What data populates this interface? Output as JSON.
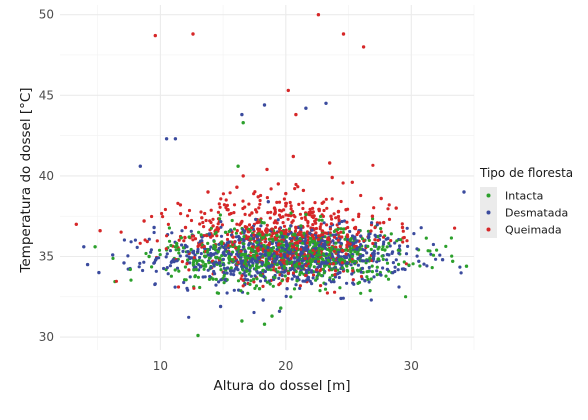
{
  "chart_data": {
    "type": "scatter",
    "xlabel": "Altura do dossel [m]",
    "ylabel": "Temperatura do dossel [°C]",
    "xlim": [
      2,
      35
    ],
    "ylim": [
      29.2,
      50.6
    ],
    "x_ticks": [
      10,
      20,
      30
    ],
    "y_ticks": [
      30,
      35,
      40,
      45,
      50
    ],
    "grid": true,
    "legend": {
      "title": "Tipo de floresta",
      "placement": "right",
      "entries": [
        "Intacta",
        "Desmatada",
        "Queimada"
      ]
    },
    "series": [
      {
        "name": "Intacta",
        "color": "#2ca02c",
        "x": [
          13.0,
          16.6,
          16.2,
          16.5,
          18.3,
          19.6,
          18.9,
          15.8,
          14.6,
          12.3,
          21.6,
          22.3,
          14.2,
          23.1,
          17.2,
          18.6,
          9.1,
          4.8,
          33.3,
          34.4,
          27.9,
          7.6,
          11.3,
          25.2,
          26.7,
          15.2,
          20.4,
          19.8,
          17.9,
          21.2,
          22.7,
          16.9,
          18.1,
          20.9,
          19.3,
          23.8,
          14.9,
          24.6,
          13.6,
          21.9
        ],
        "y": [
          30.1,
          43.3,
          40.6,
          31.0,
          30.8,
          31.8,
          31.3,
          34.8,
          35.3,
          36.2,
          37.6,
          35.9,
          33.6,
          34.4,
          36.1,
          35.2,
          35.0,
          35.6,
          34.7,
          34.4,
          35.4,
          34.2,
          35.8,
          36.1,
          34.9,
          36.5,
          34.6,
          35.7,
          33.0,
          36.9,
          35.1,
          34.1,
          37.1,
          33.5,
          36.3,
          34.8,
          35.9,
          36.7,
          34.5,
          35.3
        ]
      },
      {
        "name": "Desmatada",
        "color": "#3b4b9e",
        "x": [
          10.5,
          11.2,
          16.5,
          18.3,
          21.6,
          23.2,
          8.4,
          34.2,
          4.2,
          5.1,
          3.9,
          6.2,
          7.1,
          14.8,
          18.2,
          19.5,
          20.1,
          21.8,
          24.4,
          26.3,
          28.1,
          30.6,
          32.5,
          12.2,
          13.9,
          15.6,
          17.1,
          18.8,
          20.7,
          22.4,
          25.5,
          27.0,
          9.5,
          19.9,
          21.3,
          17.6,
          16.8,
          22.9,
          15.2,
          20.4,
          24.9,
          18.6
        ],
        "y": [
          42.3,
          42.3,
          43.8,
          44.4,
          44.2,
          44.5,
          40.6,
          39.0,
          34.5,
          34.0,
          35.6,
          35.1,
          34.6,
          31.9,
          32.3,
          31.6,
          33.0,
          33.7,
          32.4,
          33.5,
          34.2,
          34.7,
          34.8,
          35.3,
          36.4,
          34.1,
          35.8,
          36.6,
          34.9,
          35.5,
          36.2,
          35.0,
          36.8,
          35.1,
          34.4,
          37.3,
          33.8,
          36.0,
          35.7,
          36.9,
          34.6,
          38.4
        ]
      },
      {
        "name": "Queimada",
        "color": "#d62728",
        "x": [
          22.6,
          24.6,
          26.2,
          12.6,
          9.6,
          20.2,
          20.8,
          23.5,
          25.3,
          27.6,
          28.8,
          19.4,
          17.8,
          15.4,
          13.3,
          11.6,
          8.7,
          5.2,
          3.3,
          21.4,
          22.9,
          24.2,
          18.5,
          16.1,
          14.2,
          26.9,
          29.3,
          20.6,
          19.1,
          17.3,
          23.7,
          25.8,
          27.8,
          22.1,
          18.9,
          21.9,
          16.6,
          20.0,
          24.8,
          15.8,
          13.8,
          12.0
        ],
        "y": [
          50.0,
          48.8,
          48.0,
          48.8,
          48.7,
          45.3,
          43.8,
          40.8,
          39.6,
          38.6,
          38.0,
          39.5,
          38.7,
          37.9,
          37.4,
          38.2,
          37.2,
          36.6,
          37.0,
          39.1,
          38.3,
          37.8,
          40.4,
          39.3,
          36.9,
          37.5,
          36.8,
          41.2,
          38.0,
          37.7,
          39.9,
          36.5,
          37.1,
          36.3,
          36.7,
          37.6,
          40.0,
          38.9,
          37.9,
          36.2,
          39.0,
          36.8
        ]
      }
    ]
  }
}
